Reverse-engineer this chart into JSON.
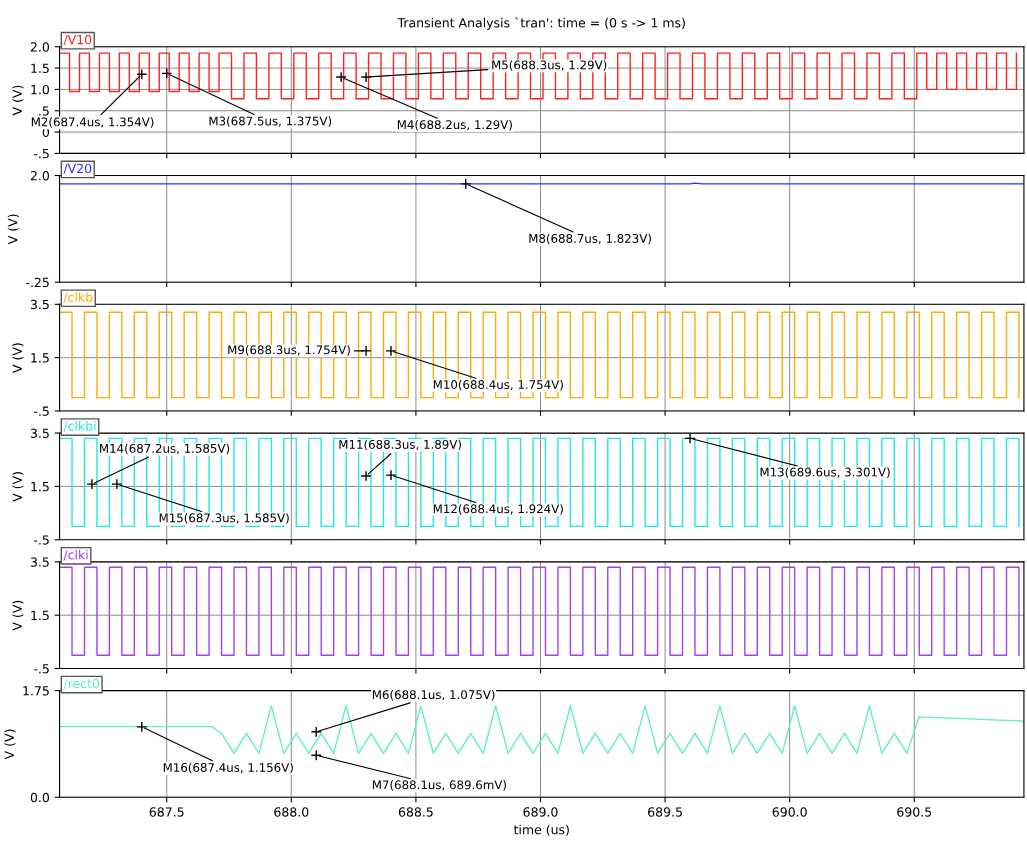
{
  "chart_data": [
    {
      "type": "step",
      "title": "Transient Analysis `tran': time = (0 s -> 1 ms)",
      "ylabel": "V (V)",
      "grid": true,
      "tick_labels": "y",
      "xlim": [
        687.07,
        690.94
      ],
      "xticks": [
        687.5,
        688.0,
        688.5,
        689.0,
        689.5,
        690.0,
        690.5
      ],
      "ylim": [
        -0.5,
        2.0
      ],
      "yticks": [
        {
          "value": 2,
          "label": "2.0"
        },
        1.5,
        {
          "value": 1,
          "label": "1.0"
        },
        {
          "value": 0.5,
          "label": ".5"
        },
        0,
        {
          "value": -0.5,
          "label": "-.5"
        }
      ],
      "x": [
        687.07,
        687.11,
        687.15,
        687.19,
        687.23,
        687.27,
        687.31,
        687.35,
        687.39,
        687.43,
        687.47,
        687.51,
        687.55,
        687.59,
        687.63,
        687.67,
        687.71,
        687.76,
        687.81,
        687.86,
        687.91,
        687.96,
        688.01,
        688.06,
        688.11,
        688.16,
        688.21,
        688.26,
        688.31,
        688.36,
        688.41,
        688.46,
        688.51,
        688.56,
        688.61,
        688.66,
        688.71,
        688.76,
        688.81,
        688.86,
        688.91,
        688.96,
        689.01,
        689.06,
        689.11,
        689.16,
        689.21,
        689.26,
        689.31,
        689.36,
        689.41,
        689.46,
        689.51,
        689.56,
        689.61,
        689.66,
        689.71,
        689.76,
        689.81,
        689.86,
        689.91,
        689.96,
        690.01,
        690.06,
        690.11,
        690.16,
        690.21,
        690.26,
        690.31,
        690.36,
        690.41,
        690.46,
        690.51,
        690.55,
        690.59,
        690.63,
        690.67,
        690.71,
        690.75,
        690.79,
        690.83,
        690.87,
        690.91
      ],
      "series": [
        {
          "name": "/V10",
          "color": "#ff2020",
          "values": [
            1.85,
            0.95,
            1.85,
            0.95,
            1.85,
            0.95,
            1.85,
            0.95,
            1.85,
            0.95,
            1.85,
            0.95,
            1.85,
            0.95,
            1.85,
            0.95,
            1.85,
            0.78,
            1.85,
            0.78,
            1.85,
            0.78,
            1.85,
            0.78,
            1.85,
            0.78,
            1.85,
            0.78,
            1.85,
            0.78,
            1.85,
            0.78,
            1.85,
            0.78,
            1.85,
            0.78,
            1.85,
            0.78,
            1.85,
            0.78,
            1.85,
            0.78,
            1.85,
            0.78,
            1.85,
            0.78,
            1.85,
            0.78,
            1.85,
            0.78,
            1.85,
            0.78,
            1.85,
            0.78,
            1.85,
            0.78,
            1.85,
            0.78,
            1.85,
            0.78,
            1.85,
            0.78,
            1.85,
            0.78,
            1.85,
            0.78,
            1.85,
            0.78,
            1.85,
            0.78,
            1.85,
            0.78,
            1.85,
            1.0,
            1.85,
            1.0,
            1.85,
            1.0,
            1.85,
            1.0,
            1.85,
            1.0,
            1.85
          ]
        }
      ],
      "annotations": [
        {
          "text": "M2(687.4us, 1.354V)",
          "x": 687.4,
          "y": 1.354
        },
        {
          "text": "M3(687.5us, 1.375V)",
          "x": 687.5,
          "y": 1.375
        },
        {
          "text": "M4(688.2us, 1.29V)",
          "x": 688.2,
          "y": 1.29
        },
        {
          "text": "M5(688.3us, 1.29V)",
          "x": 688.3,
          "y": 1.29
        }
      ]
    },
    {
      "type": "line",
      "ylabel": "V (V)",
      "grid": true,
      "tick_labels": "y",
      "xlim": [
        687.07,
        690.94
      ],
      "xticks": [
        687.5,
        688.0,
        688.5,
        689.0,
        689.5,
        690.0,
        690.5
      ],
      "ylim": [
        -0.25,
        2.0
      ],
      "yticks": [
        {
          "value": 2,
          "label": "2.0"
        },
        {
          "value": -0.25,
          "label": "-.25"
        }
      ],
      "x": [
        687.07,
        689.6,
        689.62,
        689.65,
        690.94
      ],
      "series": [
        {
          "name": "/V20",
          "color": "#3030ff",
          "values": [
            1.823,
            1.823,
            1.84,
            1.823,
            1.823
          ]
        }
      ],
      "annotations": [
        {
          "text": "M8(688.7us, 1.823V)",
          "x": 688.7,
          "y": 1.823
        }
      ]
    },
    {
      "type": "step",
      "ylabel": "V (V)",
      "grid": true,
      "tick_labels": "y",
      "xlim": [
        687.07,
        690.94
      ],
      "xticks": [
        687.5,
        688.0,
        688.5,
        689.0,
        689.5,
        690.0,
        690.5
      ],
      "ylim": [
        -0.5,
        3.5
      ],
      "yticks": [
        3.5,
        1.5,
        {
          "value": -0.5,
          "label": "-.5"
        }
      ],
      "x": [
        687.07,
        687.12,
        687.17,
        687.22,
        687.27,
        687.32,
        687.37,
        687.42,
        687.47,
        687.52,
        687.57,
        687.62,
        687.67,
        687.72,
        687.77,
        687.82,
        687.87,
        687.92,
        687.97,
        688.02,
        688.07,
        688.12,
        688.17,
        688.22,
        688.27,
        688.32,
        688.37,
        688.42,
        688.47,
        688.52,
        688.57,
        688.62,
        688.67,
        688.72,
        688.77,
        688.82,
        688.87,
        688.92,
        688.97,
        689.02,
        689.07,
        689.12,
        689.17,
        689.22,
        689.27,
        689.32,
        689.37,
        689.42,
        689.47,
        689.52,
        689.57,
        689.62,
        689.67,
        689.72,
        689.77,
        689.82,
        689.87,
        689.92,
        689.97,
        690.02,
        690.07,
        690.12,
        690.17,
        690.22,
        690.27,
        690.32,
        690.37,
        690.42,
        690.47,
        690.52,
        690.57,
        690.62,
        690.67,
        690.72,
        690.77,
        690.82,
        690.87,
        690.92
      ],
      "series": [
        {
          "name": "/clkb",
          "color": "#ffaa00",
          "values": [
            3.2,
            0,
            3.2,
            0,
            3.2,
            0,
            3.2,
            0,
            3.2,
            0,
            3.2,
            0,
            3.2,
            0,
            3.2,
            0,
            3.2,
            0,
            3.2,
            0,
            3.2,
            0,
            3.2,
            0,
            3.2,
            0,
            3.2,
            0,
            3.2,
            0,
            3.2,
            0,
            3.2,
            0,
            3.2,
            0,
            3.2,
            0,
            3.2,
            0,
            3.2,
            0,
            3.2,
            0,
            3.2,
            0,
            3.2,
            0,
            3.2,
            0,
            3.2,
            0,
            3.2,
            0,
            3.2,
            0,
            3.2,
            0,
            3.2,
            0,
            3.2,
            0,
            3.2,
            0,
            3.2,
            0,
            3.2,
            0,
            3.2,
            0,
            3.2,
            0,
            3.2,
            0,
            3.2,
            0,
            3.2,
            0
          ]
        }
      ],
      "annotations": [
        {
          "text": "M9(688.3us, 1.754V)",
          "x": 688.3,
          "y": 1.754
        },
        {
          "text": "M10(688.4us, 1.754V)",
          "x": 688.4,
          "y": 1.754
        }
      ]
    },
    {
      "type": "step",
      "ylabel": "V (V)",
      "grid": true,
      "tick_labels": "y",
      "xlim": [
        687.07,
        690.94
      ],
      "xticks": [
        687.5,
        688.0,
        688.5,
        689.0,
        689.5,
        690.0,
        690.5
      ],
      "ylim": [
        -0.5,
        3.5
      ],
      "yticks": [
        3.5,
        1.5,
        {
          "value": -0.5,
          "label": "-.5"
        }
      ],
      "x": [
        687.07,
        687.12,
        687.17,
        687.22,
        687.27,
        687.32,
        687.37,
        687.42,
        687.47,
        687.52,
        687.57,
        687.62,
        687.67,
        687.72,
        687.77,
        687.82,
        687.87,
        687.92,
        687.97,
        688.02,
        688.07,
        688.12,
        688.17,
        688.22,
        688.27,
        688.32,
        688.37,
        688.42,
        688.47,
        688.52,
        688.57,
        688.62,
        688.67,
        688.72,
        688.77,
        688.82,
        688.87,
        688.92,
        688.97,
        689.02,
        689.07,
        689.12,
        689.17,
        689.22,
        689.27,
        689.32,
        689.37,
        689.42,
        689.47,
        689.52,
        689.57,
        689.62,
        689.67,
        689.72,
        689.77,
        689.82,
        689.87,
        689.92,
        689.97,
        690.02,
        690.07,
        690.12,
        690.17,
        690.22,
        690.27,
        690.32,
        690.37,
        690.42,
        690.47,
        690.52,
        690.57,
        690.62,
        690.67,
        690.72,
        690.77,
        690.82,
        690.87,
        690.92
      ],
      "series": [
        {
          "name": "/clkbi",
          "color": "#20e8e8",
          "values": [
            3.3,
            0,
            3.3,
            0,
            3.3,
            0,
            3.3,
            0,
            3.3,
            0,
            3.3,
            0,
            3.3,
            0,
            3.3,
            0,
            3.3,
            0,
            3.3,
            0,
            3.3,
            0,
            3.3,
            0,
            3.3,
            0,
            3.3,
            0,
            3.3,
            0,
            3.3,
            0,
            3.3,
            0,
            3.3,
            0,
            3.3,
            0,
            3.3,
            0,
            3.3,
            0,
            3.3,
            0,
            3.3,
            0,
            3.3,
            0,
            3.3,
            0,
            3.3,
            0,
            3.3,
            0,
            3.3,
            0,
            3.3,
            0,
            3.3,
            0,
            3.3,
            0,
            3.3,
            0,
            3.3,
            0,
            3.3,
            0,
            3.3,
            0,
            3.3,
            0,
            3.3,
            0,
            3.3,
            0,
            3.3,
            0
          ]
        }
      ],
      "annotations": [
        {
          "text": "M14(687.2us, 1.585V)",
          "x": 687.2,
          "y": 1.585
        },
        {
          "text": "M15(687.3us, 1.585V)",
          "x": 687.3,
          "y": 1.585
        },
        {
          "text": "M11(688.3us, 1.89V)",
          "x": 688.3,
          "y": 1.89
        },
        {
          "text": "M12(688.4us, 1.924V)",
          "x": 688.4,
          "y": 1.924
        },
        {
          "text": "M13(689.6us, 3.301V)",
          "x": 689.6,
          "y": 3.301
        }
      ]
    },
    {
      "type": "step",
      "ylabel": "V (V)",
      "grid": true,
      "tick_labels": "y",
      "xlim": [
        687.07,
        690.94
      ],
      "xticks": [
        687.5,
        688.0,
        688.5,
        689.0,
        689.5,
        690.0,
        690.5
      ],
      "ylim": [
        -0.5,
        3.5
      ],
      "yticks": [
        3.5,
        1.5,
        {
          "value": -0.5,
          "label": "-.5"
        }
      ],
      "x": [
        687.07,
        687.12,
        687.17,
        687.22,
        687.27,
        687.32,
        687.37,
        687.42,
        687.47,
        687.52,
        687.57,
        687.62,
        687.67,
        687.72,
        687.77,
        687.82,
        687.87,
        687.92,
        687.97,
        688.02,
        688.07,
        688.12,
        688.17,
        688.22,
        688.27,
        688.32,
        688.37,
        688.42,
        688.47,
        688.52,
        688.57,
        688.62,
        688.67,
        688.72,
        688.77,
        688.82,
        688.87,
        688.92,
        688.97,
        689.02,
        689.07,
        689.12,
        689.17,
        689.22,
        689.27,
        689.32,
        689.37,
        689.42,
        689.47,
        689.52,
        689.57,
        689.62,
        689.67,
        689.72,
        689.77,
        689.82,
        689.87,
        689.92,
        689.97,
        690.02,
        690.07,
        690.12,
        690.17,
        690.22,
        690.27,
        690.32,
        690.37,
        690.42,
        690.47,
        690.52,
        690.57,
        690.62,
        690.67,
        690.72,
        690.77,
        690.82,
        690.87,
        690.92
      ],
      "series": [
        {
          "name": "/clki",
          "color": "#a040f0",
          "values": [
            3.3,
            0,
            3.3,
            0,
            3.3,
            0,
            3.3,
            0,
            3.3,
            0,
            3.3,
            0,
            3.3,
            0,
            3.3,
            0,
            3.3,
            0,
            3.3,
            0,
            3.3,
            0,
            3.3,
            0,
            3.3,
            0,
            3.3,
            0,
            3.3,
            0,
            3.3,
            0,
            3.3,
            0,
            3.3,
            0,
            3.3,
            0,
            3.3,
            0,
            3.3,
            0,
            3.3,
            0,
            3.3,
            0,
            3.3,
            0,
            3.3,
            0,
            3.3,
            0,
            3.3,
            0,
            3.3,
            0,
            3.3,
            0,
            3.3,
            0,
            3.3,
            0,
            3.3,
            0,
            3.3,
            0,
            3.3,
            0,
            3.3,
            0,
            3.3,
            0,
            3.3,
            0,
            3.3,
            0,
            3.3,
            0
          ]
        }
      ]
    },
    {
      "type": "line",
      "ylabel": "V (V)",
      "xlabel": "time (us)",
      "grid": true,
      "xlim": [
        687.07,
        690.94
      ],
      "xticks": [
        687.5,
        {
          "value": 688,
          "label": "688.0"
        },
        688.5,
        {
          "value": 689,
          "label": "689.0"
        },
        689.5,
        {
          "value": 690,
          "label": "690.0"
        },
        690.5
      ],
      "ylim": [
        0,
        1.75
      ],
      "yticks": [
        1.75,
        {
          "value": 0,
          "label": "0.0"
        }
      ],
      "x": [
        687.07,
        687.68,
        687.72,
        687.77,
        687.82,
        687.87,
        687.92,
        687.97,
        688.02,
        688.07,
        688.12,
        688.17,
        688.22,
        688.27,
        688.32,
        688.37,
        688.42,
        688.47,
        688.52,
        688.57,
        688.62,
        688.67,
        688.72,
        688.77,
        688.82,
        688.87,
        688.92,
        688.97,
        689.02,
        689.07,
        689.12,
        689.17,
        689.22,
        689.27,
        689.32,
        689.37,
        689.42,
        689.47,
        689.52,
        689.57,
        689.62,
        689.67,
        689.72,
        689.77,
        689.82,
        689.87,
        689.92,
        689.97,
        690.02,
        690.07,
        690.12,
        690.17,
        690.22,
        690.27,
        690.32,
        690.37,
        690.42,
        690.47,
        690.52,
        690.94
      ],
      "series": [
        {
          "name": "/rect0",
          "color": "#60f0c0",
          "values": [
            1.16,
            1.16,
            1.05,
            0.72,
            1.05,
            0.72,
            1.5,
            0.72,
            1.05,
            0.72,
            1.05,
            0.72,
            1.5,
            0.72,
            1.05,
            0.72,
            1.05,
            0.72,
            1.5,
            0.72,
            1.05,
            0.72,
            1.05,
            0.72,
            1.5,
            0.72,
            1.05,
            0.72,
            1.05,
            0.72,
            1.5,
            0.72,
            1.05,
            0.72,
            1.05,
            0.72,
            1.5,
            0.72,
            1.05,
            0.72,
            1.05,
            0.72,
            1.5,
            0.72,
            1.05,
            0.72,
            1.05,
            0.72,
            1.5,
            0.72,
            1.05,
            0.72,
            1.05,
            0.72,
            1.5,
            0.72,
            1.05,
            0.72,
            1.32,
            1.25
          ]
        }
      ],
      "annotations": [
        {
          "text": "M6(688.1us, 1.075V)",
          "x": 688.1,
          "y": 1.075
        },
        {
          "text": "M7(688.1us, 689.6mV)",
          "x": 688.1,
          "y": 0.6896
        },
        {
          "text": "M16(687.4us, 1.156V)",
          "x": 687.4,
          "y": 1.156
        }
      ]
    }
  ]
}
